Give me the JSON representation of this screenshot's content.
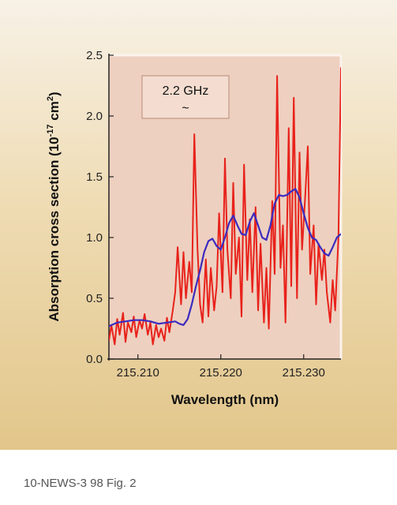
{
  "caption": "10-NEWS-3 98 Fig. 2",
  "colors": {
    "plot_bg": "#eed0c0",
    "raw_series": "#e8221b",
    "smooth_series": "#3b2bbf",
    "annotation_bg": "#f4ddd0"
  },
  "chart_data": {
    "type": "line",
    "title": "",
    "xlabel": "Wavelength (nm)",
    "ylabel_main": "Absorption cross section (10",
    "ylabel_exp1": "-17",
    "ylabel_mid": " cm",
    "ylabel_exp2": "2",
    "ylabel_end": ")",
    "xlim": [
      215.2065,
      215.2345
    ],
    "ylim": [
      0.0,
      2.5
    ],
    "x_ticks": [
      215.21,
      215.22,
      215.23
    ],
    "x_tick_labels": [
      "215.210",
      "215.220",
      "215.230"
    ],
    "y_ticks": [
      0.0,
      0.5,
      1.0,
      1.5,
      2.0,
      2.5
    ],
    "y_tick_labels": [
      "0.0",
      "0.5",
      "1.0",
      "1.5",
      "2.0",
      "2.5"
    ],
    "grid": false,
    "legend": "none",
    "annotation": {
      "label": "2.2 GHz",
      "symbol": "~"
    },
    "series": [
      {
        "x": [
          215.2065,
          215.2068,
          215.2072,
          215.2075,
          215.2078,
          215.2082,
          215.2085,
          215.2088,
          215.2092,
          215.2095,
          215.2098,
          215.2102,
          215.2105,
          215.2108,
          215.2112,
          215.2115,
          215.2118,
          215.2122,
          215.2125,
          215.2128,
          215.2132,
          215.2135,
          215.2138,
          215.2142,
          215.2145,
          215.2148,
          215.2152,
          215.2155,
          215.2158,
          215.2162,
          215.2165,
          215.2168,
          215.2172,
          215.2175,
          215.2178,
          215.2182,
          215.2185,
          215.2188,
          215.2192,
          215.2195,
          215.2198,
          215.2202,
          215.2205,
          215.2208,
          215.2212,
          215.2215,
          215.2218,
          215.2222,
          215.2225,
          215.2228,
          215.2232,
          215.2235,
          215.2238,
          215.2242,
          215.2245,
          215.2248,
          215.2252,
          215.2255,
          215.2258,
          215.2262,
          215.2265,
          215.2268,
          215.2272,
          215.2275,
          215.2278,
          215.2282,
          215.2285,
          215.2288,
          215.2292,
          215.2295,
          215.2298,
          215.2302,
          215.2305,
          215.2308,
          215.2312,
          215.2315,
          215.2318,
          215.2322,
          215.2325,
          215.2328,
          215.2332,
          215.2335,
          215.2338,
          215.2342,
          215.2345
        ],
        "values": [
          0.15,
          0.28,
          0.12,
          0.33,
          0.2,
          0.38,
          0.14,
          0.3,
          0.22,
          0.35,
          0.18,
          0.32,
          0.25,
          0.37,
          0.2,
          0.3,
          0.12,
          0.28,
          0.18,
          0.25,
          0.15,
          0.34,
          0.22,
          0.4,
          0.55,
          0.92,
          0.45,
          0.88,
          0.5,
          0.8,
          0.55,
          1.85,
          0.9,
          0.45,
          0.3,
          0.82,
          0.35,
          0.75,
          0.4,
          0.6,
          1.2,
          0.55,
          1.65,
          0.9,
          0.5,
          1.45,
          0.7,
          1.0,
          0.35,
          1.6,
          0.65,
          1.15,
          0.55,
          1.25,
          0.4,
          0.95,
          0.3,
          0.75,
          0.25,
          1.3,
          0.7,
          2.33,
          0.75,
          1.1,
          0.3,
          1.9,
          0.6,
          2.15,
          0.5,
          1.7,
          0.9,
          1.35,
          1.75,
          0.7,
          1.1,
          0.45,
          0.95,
          0.65,
          0.9,
          0.55,
          0.3,
          0.65,
          0.4,
          1.0,
          2.4
        ]
      },
      {
        "x": [
          215.2065,
          215.2075,
          215.2085,
          215.2095,
          215.2105,
          215.2115,
          215.2125,
          215.2135,
          215.2145,
          215.215,
          215.2155,
          215.216,
          215.2165,
          215.217,
          215.2175,
          215.218,
          215.2185,
          215.219,
          215.2195,
          215.22,
          215.2205,
          215.221,
          215.2215,
          215.222,
          215.2225,
          215.223,
          215.2235,
          215.224,
          215.2245,
          215.225,
          215.2255,
          215.226,
          215.2265,
          215.227,
          215.2275,
          215.228,
          215.2285,
          215.229,
          215.2295,
          215.23,
          215.2305,
          215.231,
          215.2315,
          215.232,
          215.2325,
          215.233,
          215.2335,
          215.234,
          215.2345
        ],
        "values": [
          0.27,
          0.3,
          0.31,
          0.32,
          0.32,
          0.31,
          0.29,
          0.3,
          0.31,
          0.29,
          0.28,
          0.33,
          0.45,
          0.6,
          0.73,
          0.88,
          0.97,
          0.99,
          0.93,
          0.9,
          1.0,
          1.12,
          1.18,
          1.1,
          1.03,
          1.02,
          1.13,
          1.2,
          1.1,
          1.0,
          0.98,
          1.1,
          1.28,
          1.35,
          1.34,
          1.35,
          1.38,
          1.4,
          1.33,
          1.2,
          1.08,
          1.0,
          0.98,
          0.92,
          0.87,
          0.85,
          0.92,
          1.0,
          1.03
        ]
      }
    ]
  }
}
